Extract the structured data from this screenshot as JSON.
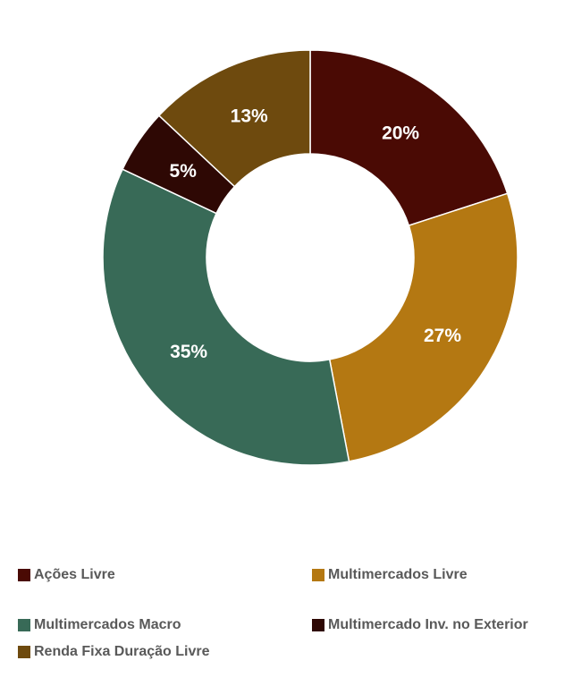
{
  "chart_data": {
    "type": "pie",
    "donut": true,
    "title": "",
    "slices": [
      {
        "name": "Ações Livre",
        "value": 20,
        "label": "20%",
        "color": "#4a0a04"
      },
      {
        "name": "Multimercados Livre",
        "value": 27,
        "label": "27%",
        "color": "#b47812"
      },
      {
        "name": "Multimercados Macro",
        "value": 35,
        "label": "35%",
        "color": "#386a57"
      },
      {
        "name": "Multimercado Inv. no Exterior",
        "value": 5,
        "label": "5%",
        "color": "#2e0804"
      },
      {
        "name": "Renda Fixa Duração Livre",
        "value": 13,
        "label": "13%",
        "color": "#6e4a0e"
      }
    ],
    "legend_position": "bottom",
    "legend": [
      "Ações Livre",
      "Multimercados Livre",
      "Multimercados Macro",
      "Multimercado Inv. no Exterior",
      "Renda Fixa Duração Livre"
    ]
  }
}
